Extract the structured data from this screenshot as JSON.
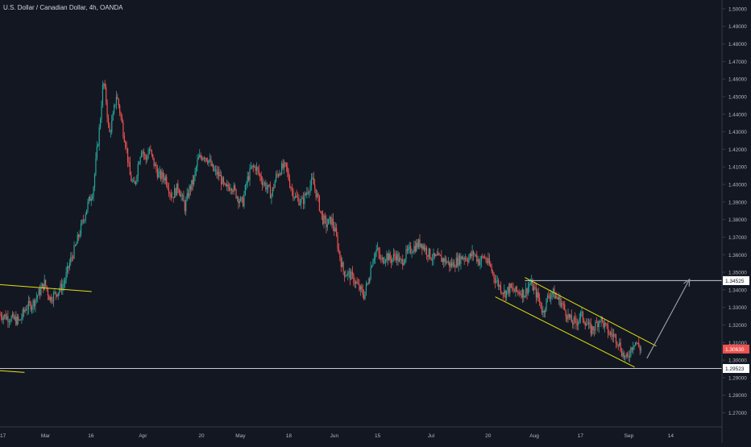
{
  "chart_data": {
    "type": "candlestick",
    "title": "U.S. Dollar / Canadian Dollar, 4h, OANDA",
    "colors": {
      "background": "#131722",
      "up": "#26a69a",
      "down": "#ef5350",
      "text": "#b2b5be",
      "axis": "#363a45",
      "trendline": "#e5e010",
      "arrow": "#9598a1",
      "current_price_bg": "#ef5350",
      "level_label_bg": "#ffffff"
    },
    "y_axis": {
      "min": 1.262,
      "max": 1.505,
      "ticks": [
        "1.50000",
        "1.49000",
        "1.48000",
        "1.47000",
        "1.46000",
        "1.45000",
        "1.44000",
        "1.43000",
        "1.42000",
        "1.41000",
        "1.40000",
        "1.39000",
        "1.38000",
        "1.37000",
        "1.36000",
        "1.35000",
        "1.34000",
        "1.33000",
        "1.32000",
        "1.31000",
        "1.30000",
        "1.29000",
        "1.28000",
        "1.27000"
      ]
    },
    "x_axis": {
      "labels": [
        {
          "text": "17",
          "pos": 0.004
        },
        {
          "text": "Mar",
          "pos": 0.063
        },
        {
          "text": "16",
          "pos": 0.126
        },
        {
          "text": "Apr",
          "pos": 0.198
        },
        {
          "text": "20",
          "pos": 0.279
        },
        {
          "text": "May",
          "pos": 0.333
        },
        {
          "text": "18",
          "pos": 0.4
        },
        {
          "text": "Jun",
          "pos": 0.463
        },
        {
          "text": "15",
          "pos": 0.523
        },
        {
          "text": "Jul",
          "pos": 0.597
        },
        {
          "text": "20",
          "pos": 0.676
        },
        {
          "text": "Aug",
          "pos": 0.74
        },
        {
          "text": "17",
          "pos": 0.804
        },
        {
          "text": "Sep",
          "pos": 0.871
        },
        {
          "text": "14",
          "pos": 0.929
        }
      ]
    },
    "price_path": [
      [
        0.0,
        1.326
      ],
      [
        0.014,
        1.324
      ],
      [
        0.027,
        1.322
      ],
      [
        0.036,
        1.33
      ],
      [
        0.045,
        1.332
      ],
      [
        0.055,
        1.339
      ],
      [
        0.062,
        1.344
      ],
      [
        0.069,
        1.335
      ],
      [
        0.077,
        1.338
      ],
      [
        0.088,
        1.343
      ],
      [
        0.097,
        1.356
      ],
      [
        0.105,
        1.365
      ],
      [
        0.114,
        1.378
      ],
      [
        0.121,
        1.388
      ],
      [
        0.129,
        1.397
      ],
      [
        0.134,
        1.418
      ],
      [
        0.138,
        1.433
      ],
      [
        0.143,
        1.459
      ],
      [
        0.147,
        1.448
      ],
      [
        0.151,
        1.428
      ],
      [
        0.156,
        1.437
      ],
      [
        0.161,
        1.451
      ],
      [
        0.165,
        1.444
      ],
      [
        0.17,
        1.432
      ],
      [
        0.175,
        1.421
      ],
      [
        0.18,
        1.405
      ],
      [
        0.186,
        1.398
      ],
      [
        0.191,
        1.411
      ],
      [
        0.196,
        1.421
      ],
      [
        0.202,
        1.414
      ],
      [
        0.207,
        1.42
      ],
      [
        0.213,
        1.412
      ],
      [
        0.22,
        1.405
      ],
      [
        0.229,
        1.404
      ],
      [
        0.238,
        1.393
      ],
      [
        0.247,
        1.399
      ],
      [
        0.256,
        1.387
      ],
      [
        0.262,
        1.397
      ],
      [
        0.268,
        1.402
      ],
      [
        0.274,
        1.414
      ],
      [
        0.282,
        1.417
      ],
      [
        0.289,
        1.414
      ],
      [
        0.295,
        1.408
      ],
      [
        0.304,
        1.405
      ],
      [
        0.312,
        1.397
      ],
      [
        0.32,
        1.4
      ],
      [
        0.329,
        1.393
      ],
      [
        0.336,
        1.389
      ],
      [
        0.342,
        1.402
      ],
      [
        0.348,
        1.409
      ],
      [
        0.354,
        1.41
      ],
      [
        0.362,
        1.403
      ],
      [
        0.37,
        1.398
      ],
      [
        0.376,
        1.394
      ],
      [
        0.382,
        1.404
      ],
      [
        0.389,
        1.409
      ],
      [
        0.396,
        1.41
      ],
      [
        0.403,
        1.398
      ],
      [
        0.41,
        1.392
      ],
      [
        0.419,
        1.39
      ],
      [
        0.426,
        1.397
      ],
      [
        0.433,
        1.402
      ],
      [
        0.44,
        1.392
      ],
      [
        0.446,
        1.381
      ],
      [
        0.452,
        1.377
      ],
      [
        0.459,
        1.38
      ],
      [
        0.465,
        1.372
      ],
      [
        0.47,
        1.36
      ],
      [
        0.476,
        1.35
      ],
      [
        0.483,
        1.349
      ],
      [
        0.49,
        1.346
      ],
      [
        0.497,
        1.341
      ],
      [
        0.504,
        1.337
      ],
      [
        0.51,
        1.345
      ],
      [
        0.516,
        1.358
      ],
      [
        0.522,
        1.363
      ],
      [
        0.528,
        1.356
      ],
      [
        0.535,
        1.36
      ],
      [
        0.541,
        1.357
      ],
      [
        0.548,
        1.36
      ],
      [
        0.555,
        1.355
      ],
      [
        0.562,
        1.36
      ],
      [
        0.569,
        1.363
      ],
      [
        0.576,
        1.365
      ],
      [
        0.583,
        1.367
      ],
      [
        0.591,
        1.362
      ],
      [
        0.6,
        1.358
      ],
      [
        0.608,
        1.358
      ],
      [
        0.616,
        1.357
      ],
      [
        0.624,
        1.354
      ],
      [
        0.632,
        1.356
      ],
      [
        0.641,
        1.359
      ],
      [
        0.649,
        1.358
      ],
      [
        0.656,
        1.361
      ],
      [
        0.664,
        1.356
      ],
      [
        0.67,
        1.359
      ],
      [
        0.678,
        1.354
      ],
      [
        0.685,
        1.347
      ],
      [
        0.692,
        1.342
      ],
      [
        0.699,
        1.338
      ],
      [
        0.706,
        1.341
      ],
      [
        0.713,
        1.339
      ],
      [
        0.72,
        1.339
      ],
      [
        0.727,
        1.338
      ],
      [
        0.734,
        1.344
      ],
      [
        0.74,
        1.34
      ],
      [
        0.746,
        1.335
      ],
      [
        0.752,
        1.327
      ],
      [
        0.758,
        1.335
      ],
      [
        0.764,
        1.339
      ],
      [
        0.77,
        1.336
      ],
      [
        0.777,
        1.333
      ],
      [
        0.784,
        1.327
      ],
      [
        0.791,
        1.322
      ],
      [
        0.798,
        1.321
      ],
      [
        0.804,
        1.326
      ],
      [
        0.811,
        1.322
      ],
      [
        0.818,
        1.317
      ],
      [
        0.824,
        1.319
      ],
      [
        0.831,
        1.324
      ],
      [
        0.838,
        1.319
      ],
      [
        0.844,
        1.315
      ],
      [
        0.85,
        1.314
      ],
      [
        0.856,
        1.311
      ],
      [
        0.862,
        1.304
      ],
      [
        0.868,
        1.3
      ],
      [
        0.874,
        1.307
      ],
      [
        0.879,
        1.311
      ],
      [
        0.884,
        1.308
      ],
      [
        0.888,
        1.306
      ]
    ],
    "annotations": {
      "horizontal_levels": [
        {
          "price": 1.34525,
          "label": "1.34525",
          "start": 0.727,
          "end": 0.96
        },
        {
          "price": 1.29523,
          "label": "1.29523",
          "start": 0.0,
          "end": 0.96
        }
      ],
      "current_price": {
        "price": 1.3063,
        "label": "1.30630"
      },
      "trendlines": [
        {
          "x1": 0.0,
          "y1": 1.343,
          "x2": 0.127,
          "y2": 1.339
        },
        {
          "x1": 0.0,
          "y1": 1.294,
          "x2": 0.034,
          "y2": 1.293
        },
        {
          "x1": 0.727,
          "y1": 1.347,
          "x2": 0.909,
          "y2": 1.308
        },
        {
          "x1": 0.686,
          "y1": 1.336,
          "x2": 0.879,
          "y2": 1.296
        }
      ],
      "projection_arrow": {
        "x1": 0.896,
        "y1": 1.301,
        "x2": 0.955,
        "y2": 1.346
      }
    }
  }
}
